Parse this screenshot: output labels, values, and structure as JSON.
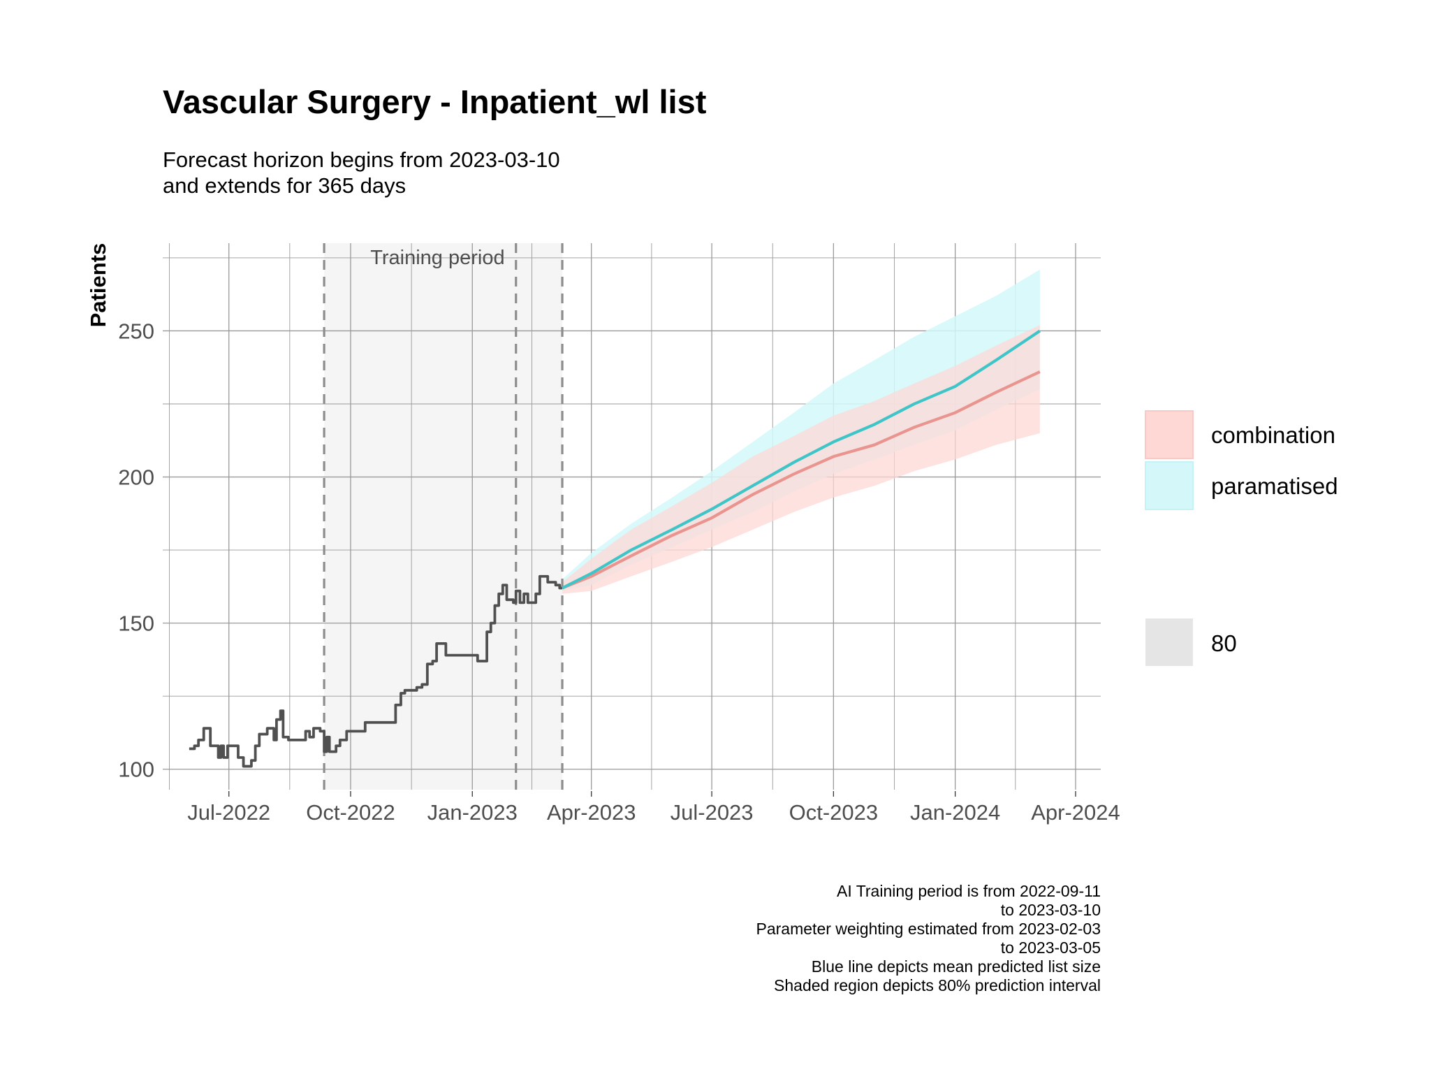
{
  "title": "Vascular Surgery - Inpatient_wl list",
  "subtitle": [
    "Forecast horizon begins from 2023-03-10",
    "and extends for 365 days"
  ],
  "caption": [
    "AI Training period is from 2022-09-11",
    "to 2023-03-10",
    "Parameter weighting estimated from 2023-02-03",
    "to 2023-03-05",
    "Blue line depicts mean predicted list size",
    "Shaded region depicts 80% prediction interval"
  ],
  "colors": {
    "observed": "#505050",
    "combination_line": "#E9948E",
    "combination_band": "#FDD8D5",
    "paramatised_line": "#3FC5C8",
    "paramatised_band": "#D4F8FA",
    "training_shade": "#F5F5F5",
    "level_swatch": "#E5E5E5",
    "grid": "#999999",
    "vline": "#8C8C8C"
  },
  "chart_data": {
    "type": "line",
    "title": "Vascular Surgery - Inpatient_wl list",
    "xlabel": "",
    "ylabel": "Patients",
    "xlim": [
      "2022-05-12",
      "2024-04-20"
    ],
    "ylim": [
      93,
      280
    ],
    "y_ticks": [
      100,
      150,
      200,
      250
    ],
    "x_ticks": [
      {
        "date": "2022-07-01",
        "label": "Jul-2022"
      },
      {
        "date": "2022-10-01",
        "label": "Oct-2022"
      },
      {
        "date": "2023-01-01",
        "label": "Jan-2023"
      },
      {
        "date": "2023-04-01",
        "label": "Apr-2023"
      },
      {
        "date": "2023-07-01",
        "label": "Jul-2023"
      },
      {
        "date": "2023-10-01",
        "label": "Oct-2023"
      },
      {
        "date": "2024-01-01",
        "label": "Jan-2024"
      },
      {
        "date": "2024-04-01",
        "label": "Apr-2024"
      }
    ],
    "grid": true,
    "training_period": {
      "start": "2022-09-11",
      "end": "2023-03-10",
      "label": "Training period"
    },
    "vlines": [
      "2022-09-11",
      "2023-02-03",
      "2023-03-10"
    ],
    "observed": {
      "x": [
        "2022-06-01",
        "2022-06-05",
        "2022-06-08",
        "2022-06-12",
        "2022-06-14",
        "2022-06-17",
        "2022-06-19",
        "2022-06-23",
        "2022-06-25",
        "2022-06-27",
        "2022-06-30",
        "2022-07-04",
        "2022-07-08",
        "2022-07-12",
        "2022-07-14",
        "2022-07-18",
        "2022-07-21",
        "2022-07-24",
        "2022-07-27",
        "2022-07-30",
        "2022-08-01",
        "2022-08-04",
        "2022-08-06",
        "2022-08-09",
        "2022-08-11",
        "2022-08-15",
        "2022-08-19",
        "2022-08-22",
        "2022-08-25",
        "2022-08-28",
        "2022-08-31",
        "2022-09-03",
        "2022-09-06",
        "2022-09-08",
        "2022-09-11",
        "2022-09-13",
        "2022-09-15",
        "2022-09-17",
        "2022-09-20",
        "2022-09-23",
        "2022-09-26",
        "2022-09-28",
        "2022-10-01",
        "2022-10-05",
        "2022-10-08",
        "2022-10-12",
        "2022-10-18",
        "2022-10-21",
        "2022-10-28",
        "2022-11-04",
        "2022-11-08",
        "2022-11-11",
        "2022-11-15",
        "2022-11-20",
        "2022-11-24",
        "2022-11-28",
        "2022-12-02",
        "2022-12-05",
        "2022-12-09",
        "2022-12-12",
        "2022-12-18",
        "2022-12-23",
        "2022-12-28",
        "2023-01-02",
        "2023-01-05",
        "2023-01-09",
        "2023-01-12",
        "2023-01-15",
        "2023-01-18",
        "2023-01-21",
        "2023-01-24",
        "2023-01-27",
        "2023-01-30",
        "2023-02-01",
        "2023-02-03",
        "2023-02-06",
        "2023-02-09",
        "2023-02-12",
        "2023-02-15",
        "2023-02-18",
        "2023-02-21",
        "2023-02-24",
        "2023-02-27",
        "2023-03-02",
        "2023-03-05",
        "2023-03-08",
        "2023-03-10"
      ],
      "y": [
        107,
        108,
        110,
        114,
        114,
        108,
        108,
        104,
        108,
        104,
        108,
        108,
        104,
        101,
        101,
        103,
        108,
        112,
        112,
        114,
        114,
        110,
        117,
        120,
        111,
        110,
        110,
        110,
        110,
        113,
        111,
        114,
        114,
        113,
        106,
        111,
        106,
        106,
        108,
        110,
        110,
        113,
        113,
        113,
        113,
        116,
        116,
        116,
        116,
        122,
        126,
        127,
        127,
        128,
        129,
        136,
        137,
        143,
        143,
        139,
        139,
        139,
        139,
        139,
        137,
        137,
        147,
        150,
        156,
        160,
        163,
        158,
        158,
        157,
        161,
        157,
        160,
        157,
        157,
        160,
        166,
        166,
        164,
        164,
        163,
        162,
        162
      ]
    },
    "series": [
      {
        "name": "combination",
        "x": [
          "2023-03-10",
          "2023-04-01",
          "2023-05-01",
          "2023-06-01",
          "2023-07-01",
          "2023-08-01",
          "2023-09-01",
          "2023-10-01",
          "2023-11-01",
          "2023-12-01",
          "2024-01-01",
          "2024-02-01",
          "2024-03-05"
        ],
        "mean": [
          162,
          166,
          173,
          180,
          186,
          194,
          201,
          207,
          211,
          217,
          222,
          229,
          236
        ],
        "lower": [
          160,
          161,
          166,
          171,
          176,
          182,
          188,
          193,
          197,
          202,
          206,
          211,
          215
        ],
        "upper": [
          164,
          172,
          182,
          190,
          198,
          207,
          214,
          221,
          226,
          232,
          238,
          245,
          252
        ]
      },
      {
        "name": "paramatised",
        "x": [
          "2023-03-10",
          "2023-04-01",
          "2023-05-01",
          "2023-06-01",
          "2023-07-01",
          "2023-08-01",
          "2023-09-01",
          "2023-10-01",
          "2023-11-01",
          "2023-12-01",
          "2024-01-01",
          "2024-02-01",
          "2024-03-05"
        ],
        "mean": [
          162,
          167,
          175,
          182,
          189,
          197,
          205,
          212,
          218,
          225,
          231,
          240,
          250
        ],
        "lower": [
          161,
          163,
          170,
          176,
          182,
          188,
          195,
          201,
          206,
          211,
          216,
          223,
          230
        ],
        "upper": [
          165,
          174,
          184,
          193,
          202,
          212,
          222,
          232,
          240,
          248,
          255,
          262,
          271
        ]
      }
    ],
    "legend": {
      "entries": [
        "combination",
        "paramatised"
      ],
      "level_title": "",
      "level": "80",
      "placement": "right"
    }
  }
}
